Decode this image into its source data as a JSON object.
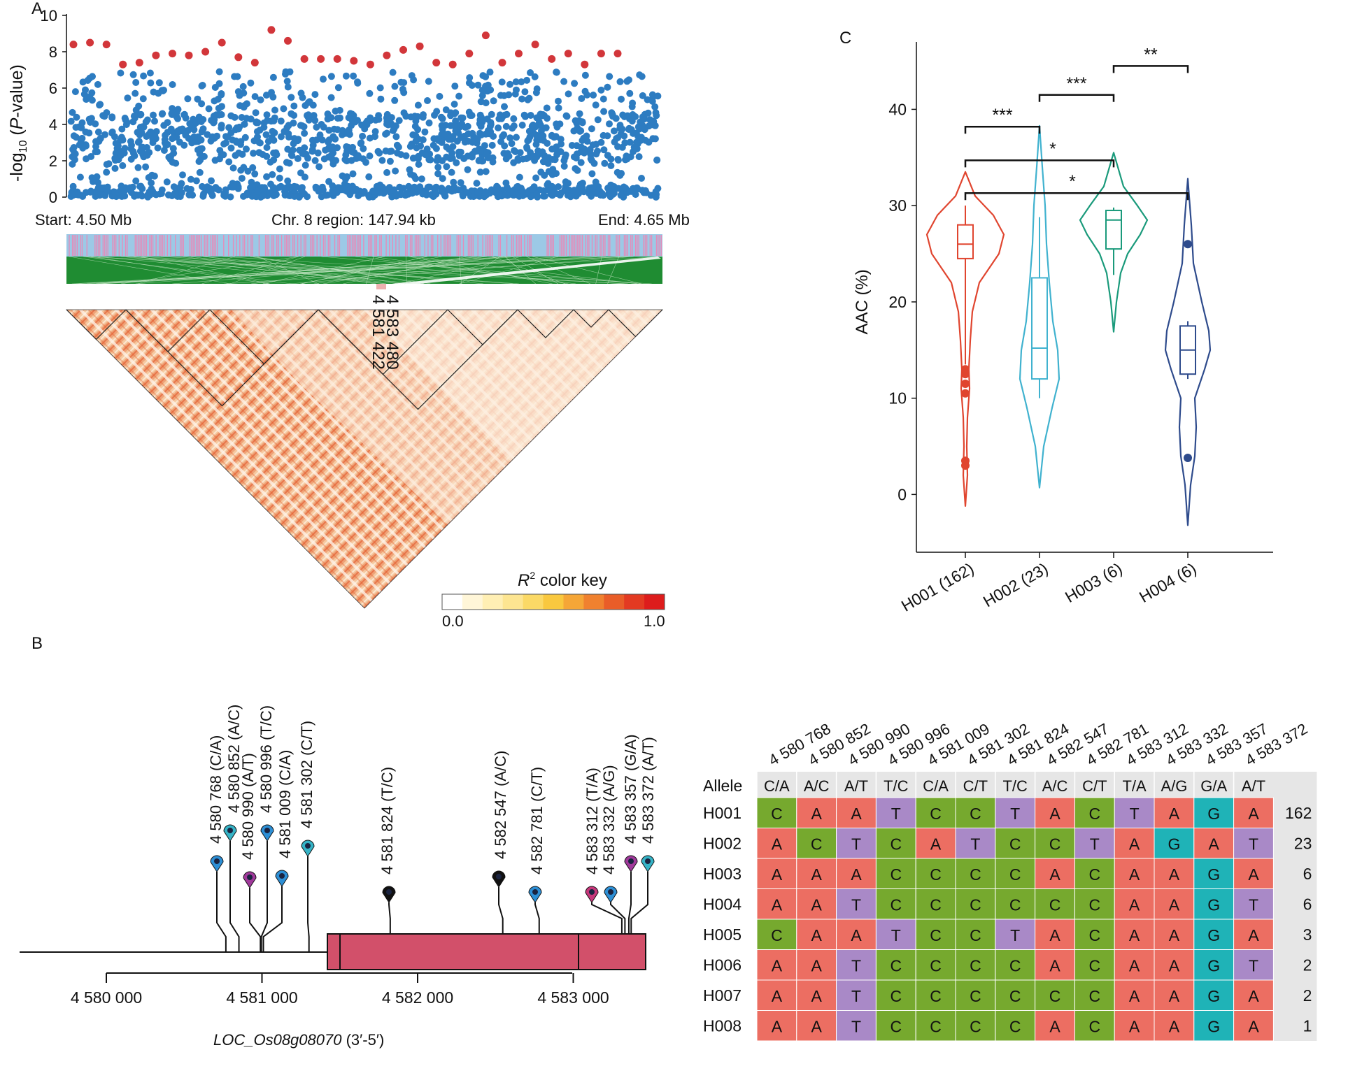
{
  "panels": {
    "a": "A",
    "b": "B",
    "c": "C"
  },
  "panel_a": {
    "ylabel_prefix": "-log",
    "ylabel_sub": "10",
    "ylabel_p": "P",
    "ylabel_suffix": "-value)",
    "ylabel_open": "(",
    "region_start": "Start: 4.50 Mb",
    "region_mid": "Chr. 8 region: 147.94 kb",
    "region_end": "End: 4.65 Mb",
    "ld_snp_labels": [
      "4 583 480",
      "4 581 422"
    ],
    "color_key_title": "color key",
    "color_key_symbol": "R",
    "color_key_sup": "2",
    "color_key_min": "0.0",
    "color_key_max": "1.0",
    "color_key_colors": [
      "#ffffff",
      "#fff6d8",
      "#ffefb4",
      "#fde591",
      "#fbd966",
      "#f9c83f",
      "#f5a637",
      "#f0812f",
      "#e95d28",
      "#e33a22",
      "#dd1c1c"
    ],
    "point_colors": {
      "significant": "#d2363a",
      "normal": "#2d7cc1"
    },
    "ld_colors": {
      "base": "#f8dcc0",
      "hot": "#e9542f",
      "pink": "#e48dba",
      "blue": "#9cc9e6",
      "green": "#1f8c32"
    }
  },
  "panel_b": {
    "snps": [
      {
        "label": "4 580 768 (C/A)",
        "color": "#2d8fd5"
      },
      {
        "label": "4 580 852 (A/C)",
        "color": "#35b3c6"
      },
      {
        "label": "4 580 990 (A/T)",
        "color": "#a0399a"
      },
      {
        "label": "4 580 996 (T/C)",
        "color": "#2d8fd5"
      },
      {
        "label": "4 581 009 (C/A)",
        "color": "#2d8fd5"
      },
      {
        "label": "4 581 302 (C/T)",
        "color": "#35b3c6"
      },
      {
        "label": "4 581 824 (T/C)",
        "color": "#111111"
      },
      {
        "label": "4 582 547 (A/C)",
        "color": "#111111"
      },
      {
        "label": "4 582 781 (C/T)",
        "color": "#2d8fd5"
      },
      {
        "label": "4 583 312 (T/A)",
        "color": "#c6377a"
      },
      {
        "label": "4 583 332 (A/G)",
        "color": "#2d8fd5"
      },
      {
        "label": "4 583 357 (G/A)",
        "color": "#a0399a"
      },
      {
        "label": "4 583 372 (A/T)",
        "color": "#35b3c6"
      }
    ],
    "axis_ticks": [
      "4 580 000",
      "4 581 000",
      "4 582 000",
      "4 583 000"
    ],
    "gene_name": "LOC_Os08g08070",
    "gene_strand": " (3′-5′)",
    "gene_color": "#d2506a"
  },
  "haplotype_table": {
    "positions": [
      "4 580 768",
      "4 580 852",
      "4 580 990",
      "4 580 996",
      "4 581 009",
      "4 581 302",
      "4 581 824",
      "4 582 547",
      "4 582 781",
      "4 583 312",
      "4 583 332",
      "4 583 357",
      "4 583 372"
    ],
    "allele_label": "Allele",
    "alleles": [
      "C/A",
      "A/C",
      "A/T",
      "T/C",
      "C/A",
      "C/T",
      "T/C",
      "A/C",
      "C/T",
      "T/A",
      "A/G",
      "G/A",
      "A/T"
    ],
    "rows": [
      {
        "name": "H001",
        "bases": [
          "C",
          "A",
          "A",
          "T",
          "C",
          "C",
          "T",
          "A",
          "C",
          "T",
          "A",
          "G",
          "A"
        ],
        "count": "162"
      },
      {
        "name": "H002",
        "bases": [
          "A",
          "C",
          "T",
          "C",
          "A",
          "T",
          "C",
          "C",
          "T",
          "A",
          "G",
          "A",
          "T"
        ],
        "count": "23"
      },
      {
        "name": "H003",
        "bases": [
          "A",
          "A",
          "A",
          "C",
          "C",
          "C",
          "C",
          "A",
          "C",
          "A",
          "A",
          "G",
          "A"
        ],
        "count": "6"
      },
      {
        "name": "H004",
        "bases": [
          "A",
          "A",
          "T",
          "C",
          "C",
          "C",
          "C",
          "C",
          "C",
          "A",
          "A",
          "G",
          "T"
        ],
        "count": "6"
      },
      {
        "name": "H005",
        "bases": [
          "C",
          "A",
          "A",
          "T",
          "C",
          "C",
          "T",
          "A",
          "C",
          "A",
          "A",
          "G",
          "A"
        ],
        "count": "3"
      },
      {
        "name": "H006",
        "bases": [
          "A",
          "A",
          "T",
          "C",
          "C",
          "C",
          "C",
          "A",
          "C",
          "A",
          "A",
          "G",
          "T"
        ],
        "count": "2"
      },
      {
        "name": "H007",
        "bases": [
          "A",
          "A",
          "T",
          "C",
          "C",
          "C",
          "C",
          "C",
          "C",
          "A",
          "A",
          "G",
          "A"
        ],
        "count": "2"
      },
      {
        "name": "H008",
        "bases": [
          "A",
          "A",
          "T",
          "C",
          "C",
          "C",
          "C",
          "A",
          "C",
          "A",
          "A",
          "G",
          "A"
        ],
        "count": "1"
      }
    ],
    "base_colors": {
      "A": "#ec6e62",
      "C": "#76a92e",
      "T": "#a989c7",
      "G": "#1fb3b7"
    },
    "header_color": "#e6e6e6"
  },
  "chart_data": [
    {
      "type": "scatter",
      "title": "",
      "ylabel": "-log10 (P-value)",
      "ylim": [
        0,
        10
      ],
      "yticks": [
        "0",
        "2",
        "4",
        "6",
        "8",
        "10"
      ],
      "x_range_label": [
        "Start: 4.50 Mb",
        "End: 4.65 Mb"
      ],
      "significant_points_y": [
        8.4,
        8.5,
        8.4,
        7.3,
        7.4,
        7.8,
        7.9,
        7.8,
        8.0,
        8.5,
        7.7,
        7.4,
        9.2,
        8.6,
        7.6,
        7.6,
        7.6,
        7.5,
        7.3,
        7.8,
        8.1,
        8.3,
        7.4,
        7.3,
        7.9,
        8.9,
        7.4,
        7.9,
        8.4,
        7.6,
        7.9,
        7.3,
        7.9,
        7.9
      ],
      "legend": "none"
    },
    {
      "type": "violin",
      "title": "",
      "ylabel": "AAC (%)",
      "ylim": [
        -6,
        47
      ],
      "yticks": [
        "0",
        "10",
        "20",
        "30",
        "40"
      ],
      "categories": [
        "H001 (162)",
        "H002 (23)",
        "H003 (6)",
        "H004 (6)"
      ],
      "colors": [
        "#e0452f",
        "#40b2cf",
        "#1a9a7b",
        "#2e4b8c"
      ],
      "boxes": [
        {
          "q1": 24.5,
          "median": 26,
          "q3": 28,
          "whisker_low": 13.5,
          "whisker_high": 30,
          "outliers": [
            3,
            3.5,
            10.5,
            11.5,
            12.5,
            13
          ]
        },
        {
          "q1": 12,
          "median": 15.2,
          "q3": 22.5,
          "whisker_low": 10,
          "whisker_high": 28.8,
          "outliers": []
        },
        {
          "q1": 25.5,
          "median": 28.5,
          "q3": 29.5,
          "whisker_low": 22.8,
          "whisker_high": 29.8,
          "outliers": []
        },
        {
          "q1": 12.5,
          "median": 15,
          "q3": 17.5,
          "whisker_low": 12,
          "whisker_high": 18,
          "outliers": [
            3.8,
            26
          ]
        }
      ],
      "violins": [
        {
          "min": -1.2,
          "max": 33.5
        },
        {
          "min": 0.7,
          "max": 38.3
        },
        {
          "min": 16.9,
          "max": 35.5
        },
        {
          "min": -3.2,
          "max": 32.8
        }
      ],
      "significance": [
        {
          "from": 0,
          "to": 1,
          "y": 38.2,
          "label": "***"
        },
        {
          "from": 1,
          "to": 2,
          "y": 41.5,
          "label": "***"
        },
        {
          "from": 2,
          "to": 3,
          "y": 44.5,
          "label": "**"
        },
        {
          "from": 0,
          "to": 2,
          "y": 34.7,
          "label": "*"
        },
        {
          "from": 0,
          "to": 3,
          "y": 31.3,
          "label": "*"
        }
      ],
      "legend": "none"
    }
  ]
}
